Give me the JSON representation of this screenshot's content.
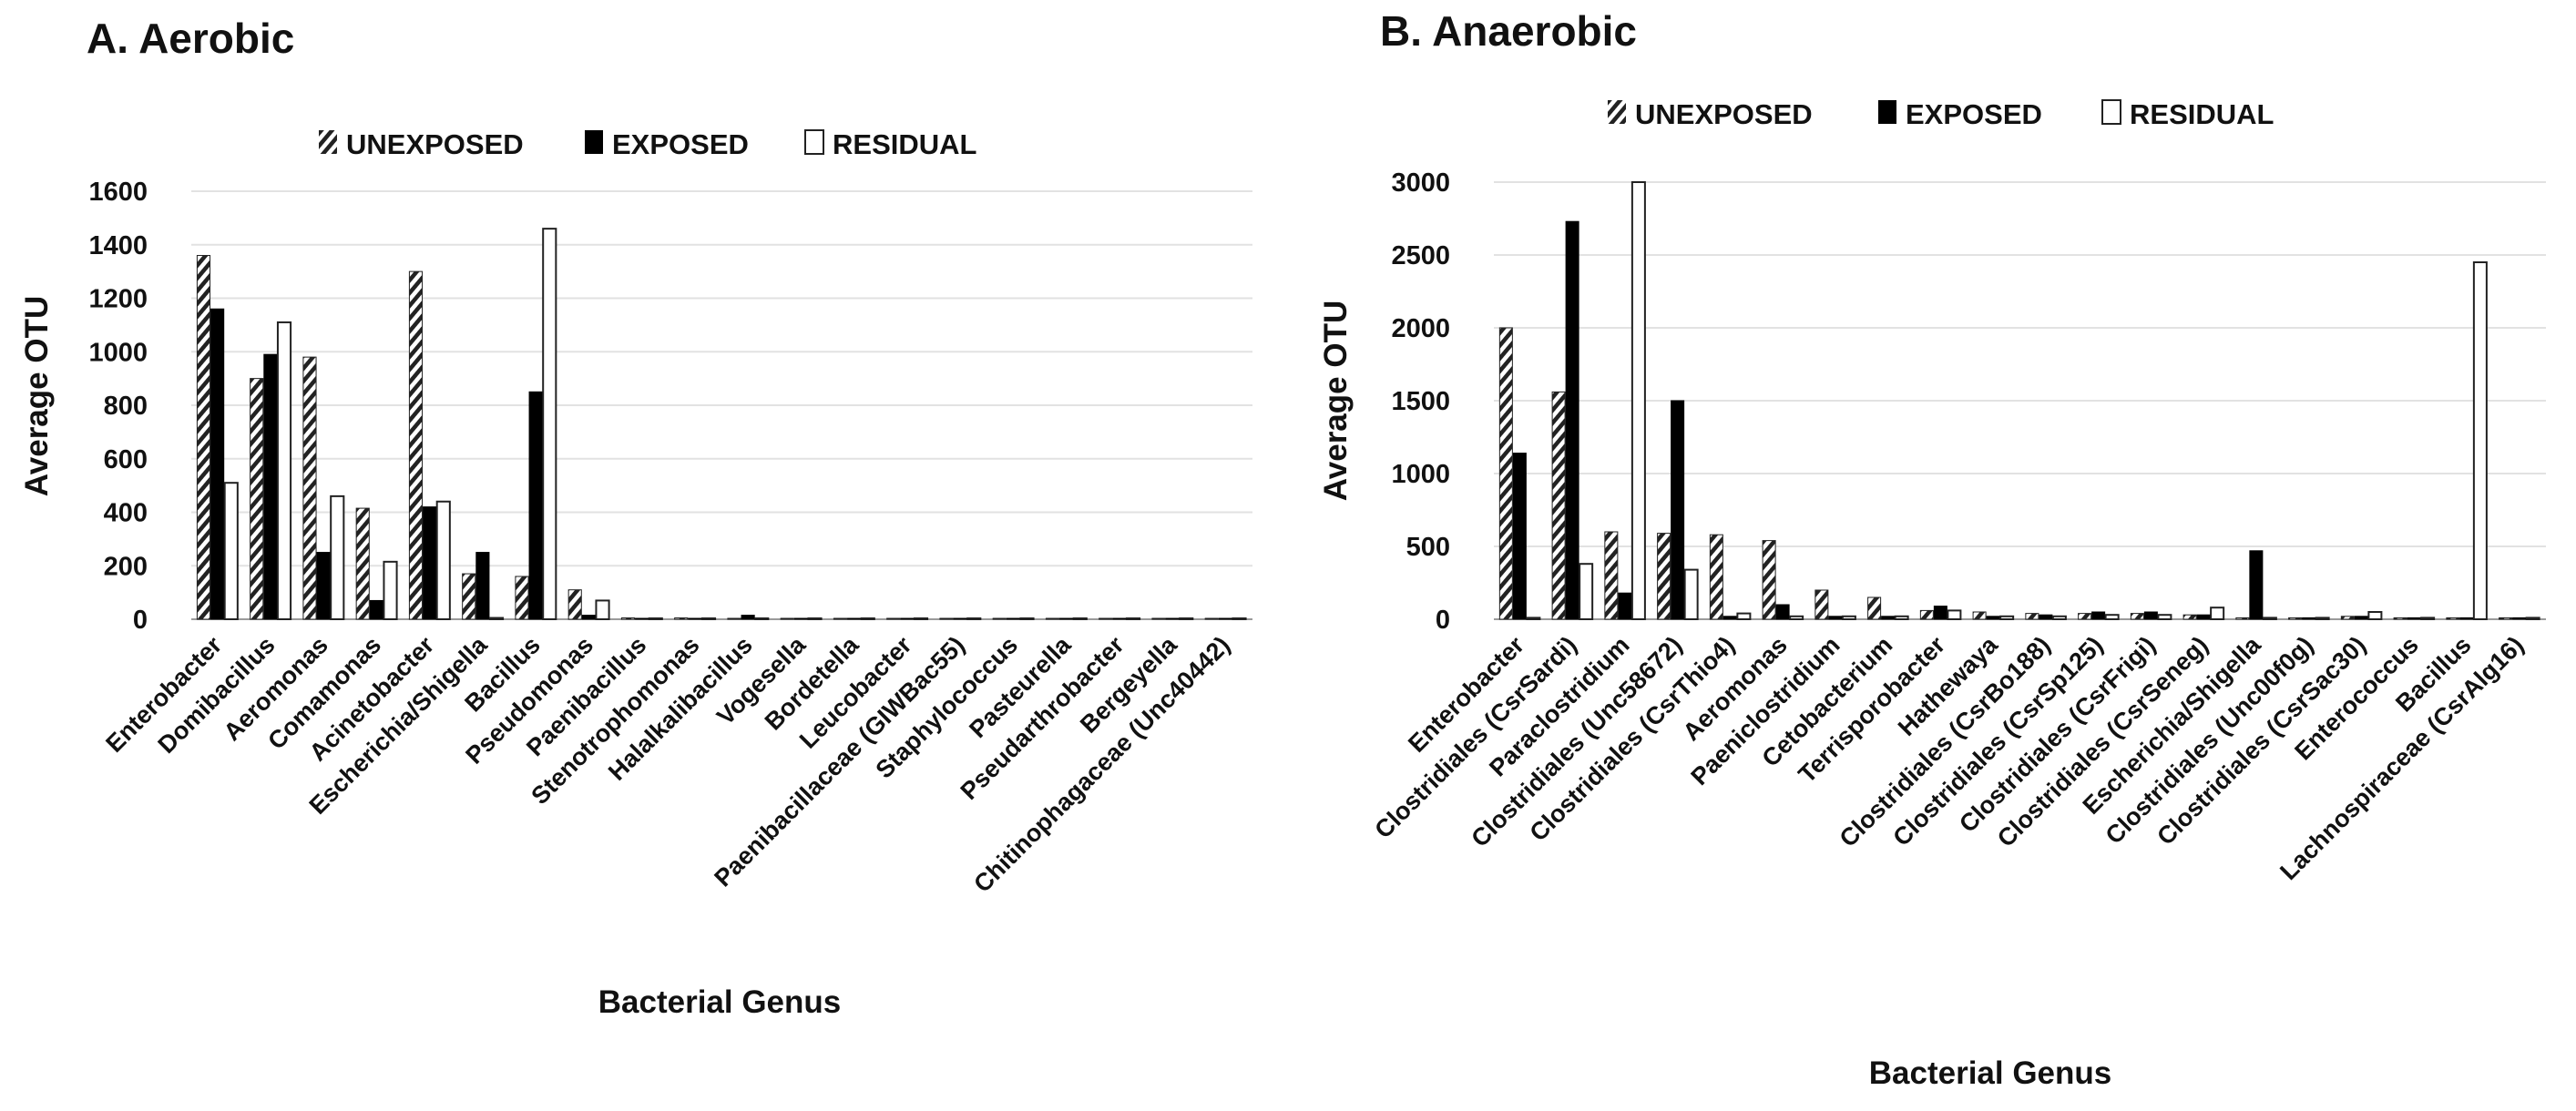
{
  "chart_data": [
    {
      "type": "bar",
      "title": "A. Aerobic",
      "xlabel": "Bacterial Genus",
      "ylabel": "Average OTU",
      "ylim": [
        0,
        1600
      ],
      "yticks": [
        0,
        200,
        400,
        600,
        800,
        1000,
        1200,
        1400,
        1600
      ],
      "grid": true,
      "legend_position": "top",
      "categories": [
        "Enterobacter",
        "Domibacillus",
        "Aeromonas",
        "Comamonas",
        "Acinetobacter",
        "Escherichia/Shigella",
        "Bacillus",
        "Pseudomonas",
        "Paenibacillus",
        "Stenotrophomonas",
        "Halalkalibacillus",
        "Vogesella",
        "Bordetella",
        "Leucobacter",
        "Paenibacillaceae (GIWBac55)",
        "Staphylococcus",
        "Pasteurella",
        "Pseudarthrobacter",
        "Bergeyella",
        "Chitinophagaceae (Unc40442)"
      ],
      "series": [
        {
          "name": "UNEXPOSED",
          "pattern": "hatched",
          "values": [
            1360,
            900,
            980,
            415,
            1300,
            170,
            160,
            110,
            5,
            5,
            3,
            3,
            3,
            3,
            3,
            3,
            3,
            3,
            3,
            3
          ]
        },
        {
          "name": "EXPOSED",
          "pattern": "solid",
          "values": [
            1160,
            990,
            250,
            70,
            420,
            250,
            850,
            15,
            3,
            3,
            15,
            3,
            3,
            3,
            3,
            3,
            3,
            3,
            3,
            3
          ]
        },
        {
          "name": "RESIDUAL",
          "pattern": "outline",
          "values": [
            510,
            1110,
            460,
            215,
            440,
            5,
            1460,
            70,
            3,
            3,
            3,
            3,
            3,
            3,
            3,
            3,
            3,
            3,
            3,
            3
          ]
        }
      ]
    },
    {
      "type": "bar",
      "title": "B. Anaerobic",
      "xlabel": "Bacterial Genus",
      "ylabel": "Average OTU",
      "ylim": [
        0,
        3000
      ],
      "yticks": [
        0,
        500,
        1000,
        1500,
        2000,
        2500,
        3000
      ],
      "grid": true,
      "legend_position": "top",
      "categories": [
        "Enterobacter",
        "Clostridiales (CsrSardi)",
        "Paraclostridium",
        "Clostridiales (Unc58672)",
        "Clostridiales (CsrThio4)",
        "Aeromonas",
        "Paeniclostridium",
        "Cetobacterium",
        "Terrisporobacter",
        "Hathewaya",
        "Clostridiales (CsrBo188)",
        "Clostridiales (CsrSp125)",
        "Clostridiales (CsrFrigi)",
        "Clostridiales (CsrSeneg)",
        "Escherichia/Shigella",
        "Clostridiales (Unc00f0g)",
        "Clostridiales (CsrSac30)",
        "Enterococcus",
        "Bacillus",
        "Lachnospiraceae (CsrAlg16)"
      ],
      "series": [
        {
          "name": "UNEXPOSED",
          "pattern": "hatched",
          "values": [
            2000,
            1560,
            600,
            590,
            580,
            540,
            200,
            150,
            60,
            50,
            40,
            40,
            40,
            30,
            10,
            10,
            20,
            10,
            10,
            10
          ]
        },
        {
          "name": "EXPOSED",
          "pattern": "solid",
          "values": [
            1140,
            2730,
            180,
            1500,
            20,
            100,
            20,
            20,
            90,
            20,
            30,
            50,
            50,
            30,
            470,
            10,
            20,
            10,
            10,
            10
          ]
        },
        {
          "name": "RESIDUAL",
          "pattern": "outline",
          "values": [
            10,
            380,
            3000,
            340,
            40,
            20,
            20,
            20,
            60,
            20,
            20,
            30,
            30,
            80,
            10,
            10,
            50,
            10,
            2450,
            10
          ]
        }
      ]
    }
  ]
}
